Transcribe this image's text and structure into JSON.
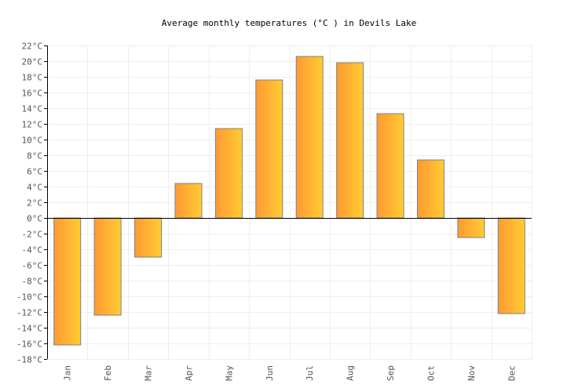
{
  "chart_data": {
    "type": "bar",
    "title": "Average monthly temperatures (°C ) in Devils Lake",
    "xlabel": "",
    "ylabel": "",
    "categories": [
      "Jan",
      "Feb",
      "Mar",
      "Apr",
      "May",
      "Jun",
      "Jul",
      "Aug",
      "Sep",
      "Oct",
      "Nov",
      "Dec"
    ],
    "values": [
      -16.2,
      -12.4,
      -5.0,
      4.4,
      11.4,
      17.6,
      20.6,
      19.8,
      13.3,
      7.4,
      -2.5,
      -12.2
    ],
    "ylim": [
      -18,
      22
    ],
    "ytick_step": 2,
    "ytick_suffix": "°C",
    "grid": true,
    "legend": "none",
    "colors": {
      "bar_start": "#ff9933",
      "bar_end": "#ffcc33",
      "bar_stroke": "#808080",
      "grid": "#eeeeee"
    }
  }
}
